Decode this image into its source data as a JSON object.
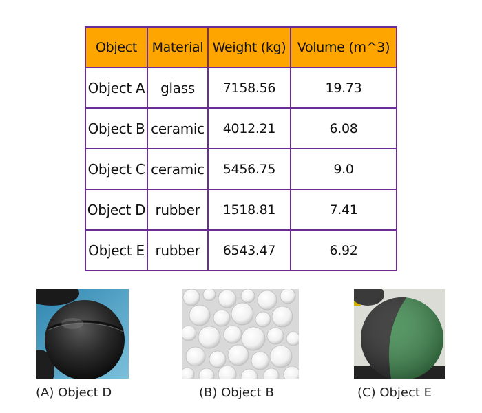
{
  "table": {
    "headers": [
      "Object",
      "Material",
      "Weight (kg)",
      "Volume (m^3)"
    ],
    "rows": [
      [
        "Object A",
        "glass",
        "7158.56",
        "19.73"
      ],
      [
        "Object B",
        "ceramic",
        "4012.21",
        "6.08"
      ],
      [
        "Object C",
        "ceramic",
        "5456.75",
        "9.0"
      ],
      [
        "Object D",
        "rubber",
        "1518.81",
        "7.41"
      ],
      [
        "Object E",
        "rubber",
        "6543.47",
        "6.92"
      ]
    ],
    "colors": {
      "header_bg": "#ffa500",
      "border": "#6a2c95"
    }
  },
  "figures": [
    {
      "caption": "(A) Object D",
      "subject": "black rubber ball with seam"
    },
    {
      "caption": "(B) Object B",
      "subject": "pile of white ceramic balls"
    },
    {
      "caption": "(C) Object E",
      "subject": "black and green rubber ball"
    }
  ]
}
